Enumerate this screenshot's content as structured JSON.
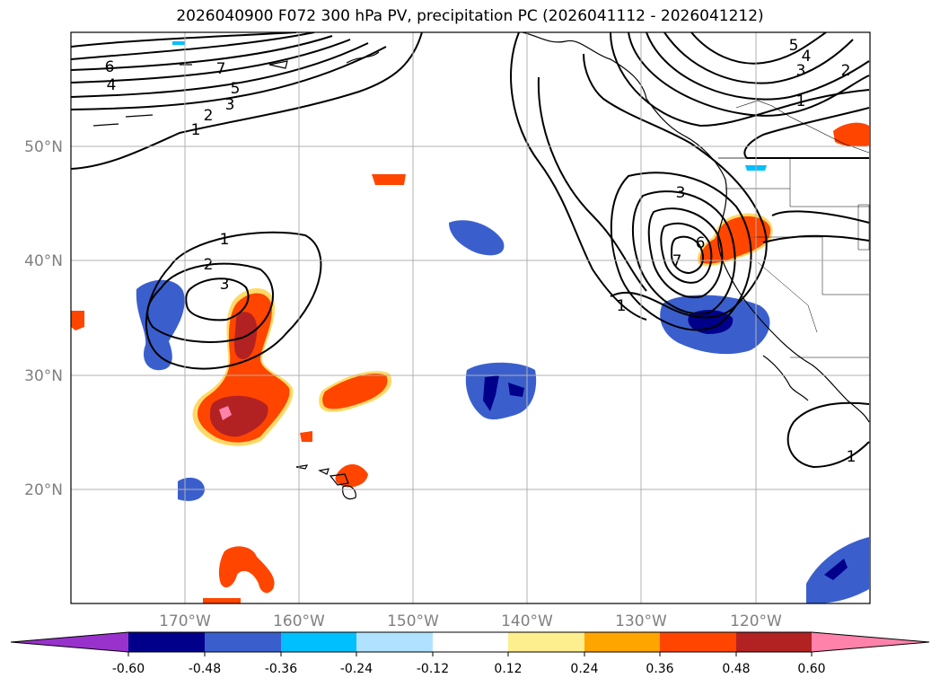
{
  "title": "2026040900 F072 300 hPa PV, precipitation PC (2026041112 - 2026041212)",
  "lat_labels": [
    "50°N",
    "40°N",
    "30°N",
    "20°N"
  ],
  "lon_labels": [
    "170°W",
    "160°W",
    "150°W",
    "140°W",
    "130°W",
    "120°W"
  ],
  "colorbar": {
    "colors": [
      "#9932cc",
      "#00008b",
      "#3a5fcd",
      "#00bfff",
      "#b0e2ff",
      "#ffffff",
      "#fdee8e",
      "#ffa500",
      "#ff4500",
      "#b22222",
      "#ff82ab"
    ],
    "ticks": [
      "-0.60",
      "-0.48",
      "-0.36",
      "-0.24",
      "-0.12",
      "0.12",
      "0.24",
      "0.36",
      "0.48",
      "0.60"
    ]
  },
  "contour_labels": {
    "nw": [
      "6",
      "7",
      "4",
      "5",
      "2",
      "3",
      "1"
    ],
    "ne": [
      "5",
      "4",
      "3",
      "2",
      "1"
    ],
    "mid": [
      "1",
      "2",
      "3"
    ],
    "east": [
      "3",
      "6",
      "7",
      "1"
    ],
    "se": [
      "1"
    ]
  }
}
